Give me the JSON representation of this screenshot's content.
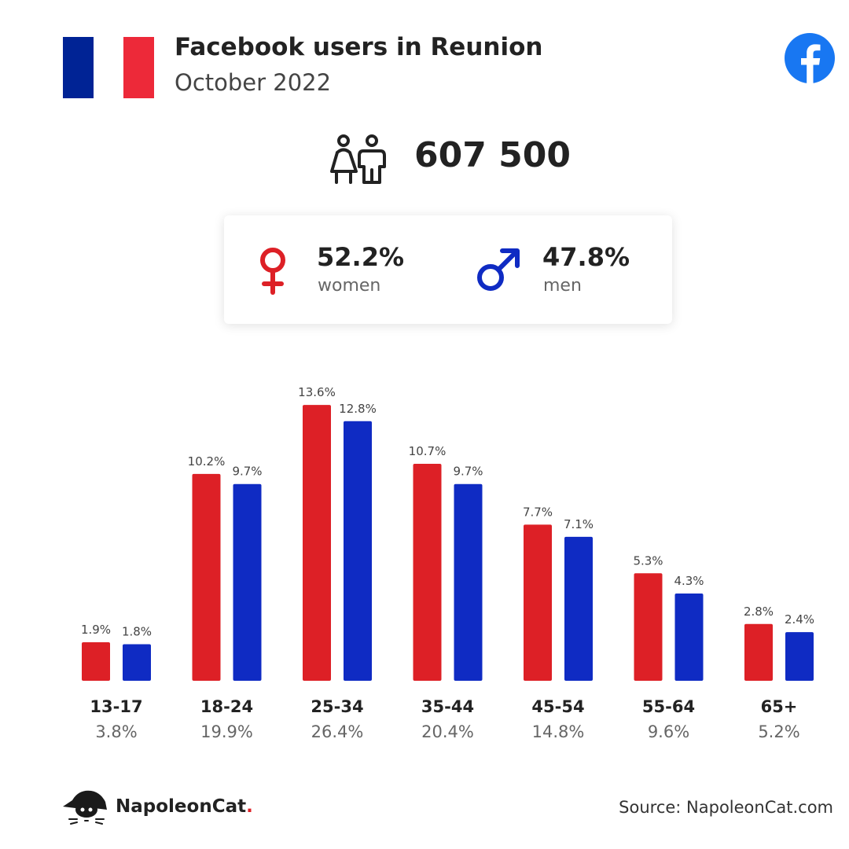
{
  "header": {
    "title": "Facebook users in Reunion",
    "subtitle": "October 2022"
  },
  "flag_colors": [
    "#002395",
    "#ffffff",
    "#ed2939"
  ],
  "icons": {
    "flag": "france-flag-icon",
    "social": "facebook-logo-icon",
    "users": "users-icon",
    "women": "female-symbol-icon",
    "men": "male-symbol-icon"
  },
  "total_users": "607 500",
  "gender": {
    "women": {
      "pct": "52.2%",
      "label": "women"
    },
    "men": {
      "pct": "47.8%",
      "label": "men"
    }
  },
  "colors": {
    "women": "#dd2026",
    "men": "#0f2bc3",
    "facebook": "#1877f2"
  },
  "chart_data": {
    "type": "bar",
    "categories": [
      "13-17",
      "18-24",
      "25-34",
      "35-44",
      "45-54",
      "55-64",
      "65+"
    ],
    "category_totals": [
      "3.8%",
      "19.9%",
      "26.4%",
      "20.4%",
      "14.8%",
      "9.6%",
      "5.2%"
    ],
    "series": [
      {
        "values": [
          1.9,
          10.2,
          13.6,
          10.7,
          7.7,
          5.3,
          2.8
        ],
        "labels": [
          "1.9%",
          "10.2%",
          "13.6%",
          "10.7%",
          "7.7%",
          "5.3%",
          "2.8%"
        ]
      },
      {
        "values": [
          1.8,
          9.7,
          12.8,
          9.7,
          7.1,
          4.3,
          2.4
        ],
        "labels": [
          "1.8%",
          "9.7%",
          "12.8%",
          "9.7%",
          "7.1%",
          "4.3%",
          "2.4%"
        ]
      }
    ]
  },
  "footer": {
    "brand": "NapoleonCat",
    "brand_dot": ".",
    "source": "Source: NapoleonCat.com"
  }
}
